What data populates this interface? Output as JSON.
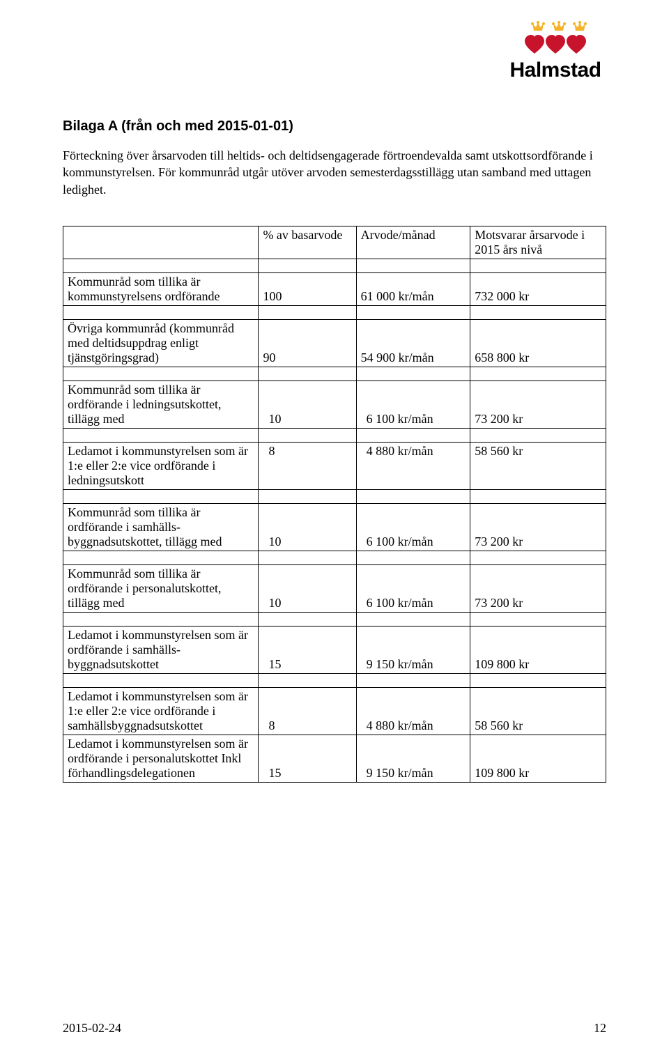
{
  "logo": {
    "text": "Halmstad",
    "heart_fill": "#c7132b",
    "crown_fill": "#f6b32a",
    "text_color": "#0a5aa5"
  },
  "title": "Bilaga A (från och med 2015-01-01)",
  "intro": "Förteckning över årsarvoden till heltids- och deltidsengagerade förtroendevalda samt utskottsordförande i kommunstyrelsen. För kommunråd utgår utöver arvoden semesterdagsstillägg utan samband med uttagen ledighet.",
  "table": {
    "headers": [
      "",
      "% av basarvode",
      "Arvode/månad",
      "Motsvarar årsarvode i 2015 års nivå"
    ],
    "rows": [
      {
        "label": "Kommunråd som tillika är kommunstyrelsens ordförande",
        "pct": "100",
        "month": "61 000 kr/mån",
        "year": "732 000 kr"
      },
      {
        "label": "Övriga kommunråd (kommunråd med deltidsuppdrag enligt tjänstgöringsgrad)",
        "pct": "90",
        "month": "54 900 kr/mån",
        "year": "658 800 kr"
      },
      {
        "label": "Kommunråd som tillika är ordförande i ledningsutskottet, tillägg med",
        "pct": "10",
        "month": "6 100 kr/mån",
        "year": "73 200 kr",
        "indent": true
      },
      {
        "label": "Ledamot i kommunstyrelsen som är 1:e eller 2:e vice ordförande i ledningsutskott",
        "pct": "8",
        "month": "4 880 kr/mån",
        "year": "58 560 kr",
        "indent": true,
        "top_align": true
      },
      {
        "label": "Kommunråd som tillika är ordförande i samhälls-byggnadsutskottet, tillägg med",
        "pct": "10",
        "month": "6 100 kr/mån",
        "year": "73 200 kr",
        "indent": true
      },
      {
        "label": "Kommunråd som tillika är ordförande i personalutskottet, tillägg med",
        "pct": "10",
        "month": "6 100 kr/mån",
        "year": "73 200 kr",
        "indent": true
      },
      {
        "label": "Ledamot i kommunstyrelsen som är ordförande i samhälls-byggnadsutskottet",
        "pct": "15",
        "month": "9 150 kr/mån",
        "year": "109 800 kr",
        "indent": true
      },
      {
        "label": "Ledamot i kommunstyrelsen som är 1:e eller 2:e vice ordförande i samhällsbyggnadsutskottet",
        "pct": "8",
        "month": "4 880 kr/mån",
        "year": "58 560 kr",
        "indent": true
      },
      {
        "label": "Ledamot i kommunstyrelsen som är ordförande i personalutskottet Inkl förhandlingsdelegationen",
        "pct": "15",
        "month": "9 150 kr/mån",
        "year": "109 800 kr",
        "indent": true,
        "no_spacer_before": true
      }
    ]
  },
  "footer": {
    "date": "2015-02-24",
    "page": "12"
  }
}
